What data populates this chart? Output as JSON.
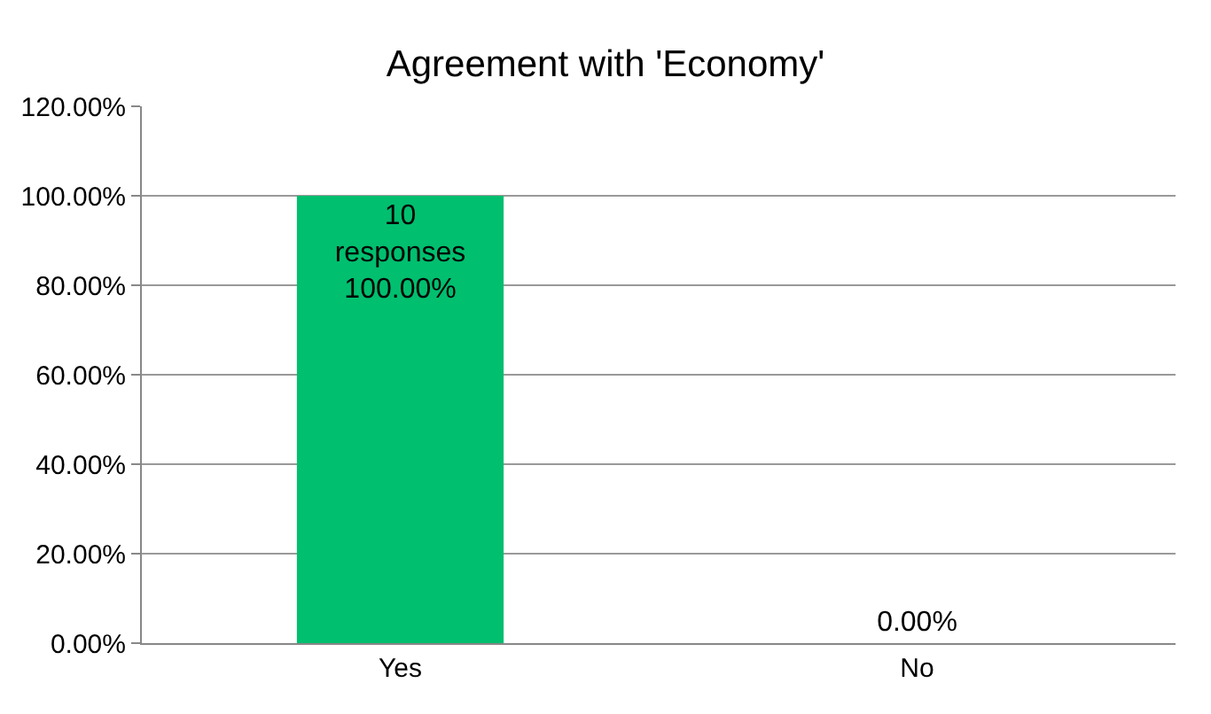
{
  "chart_data": {
    "type": "bar",
    "title": "Agreement with 'Economy'",
    "categories": [
      "Yes",
      "No"
    ],
    "values": [
      100,
      0
    ],
    "value_labels": [
      "10\nresponses\n100.00%",
      "0.00%"
    ],
    "color": "#00bf6f",
    "ylim": [
      0,
      120
    ],
    "yticks": [
      {
        "value": 0,
        "label": "0.00%"
      },
      {
        "value": 20,
        "label": "20.00%"
      },
      {
        "value": 40,
        "label": "40.00%"
      },
      {
        "value": 60,
        "label": "60.00%"
      },
      {
        "value": 80,
        "label": "80.00%"
      },
      {
        "value": 100,
        "label": "100.00%"
      },
      {
        "value": 120,
        "label": "120.00%"
      }
    ],
    "grid": "y",
    "legend": false
  }
}
